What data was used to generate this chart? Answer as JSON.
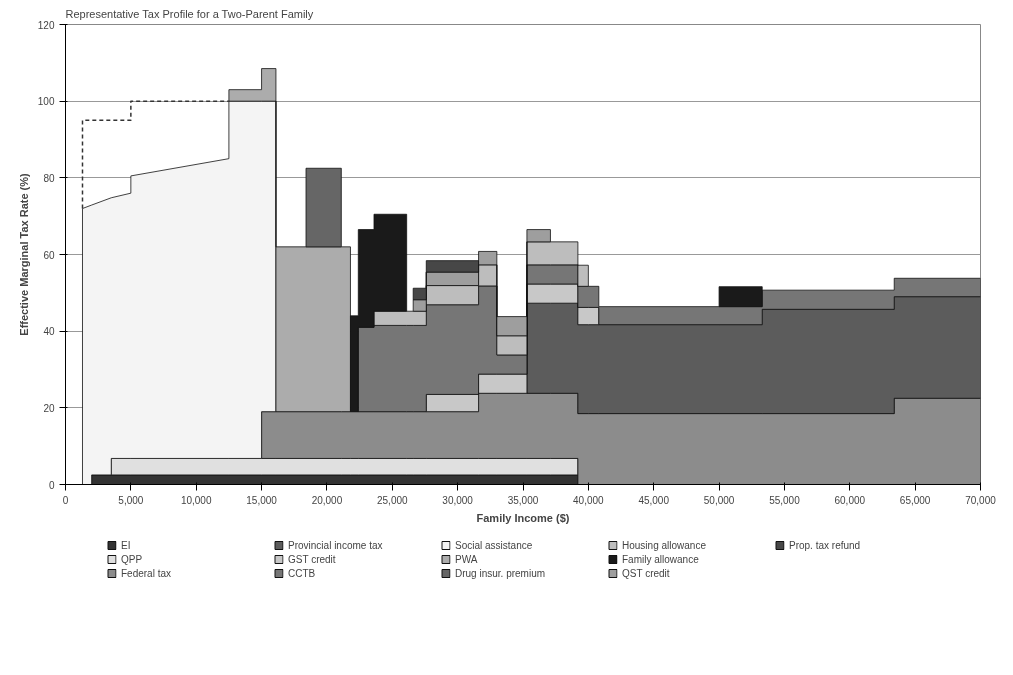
{
  "chart_data": {
    "type": "area",
    "stacked": true,
    "title": "Representative Tax Profile for a Two-Parent Family",
    "xlabel": "Family Income ($)",
    "ylabel": "Effective Marginal Tax Rate (%)",
    "x": [
      1300,
      2000,
      2000,
      3500,
      3500,
      5000,
      5000,
      12500,
      12500,
      15000,
      15000,
      16100,
      16100,
      18400,
      18400,
      21100,
      21100,
      21800,
      21800,
      22400,
      22400,
      23600,
      23600,
      26100,
      26100,
      26600,
      26600,
      27600,
      27600,
      31600,
      31600,
      33000,
      33000,
      35300,
      35300,
      37100,
      37100,
      39200,
      39200,
      40000,
      40000,
      40800,
      40800,
      50000,
      50000,
      53300,
      53300,
      63400,
      63400,
      70000
    ],
    "xlim": [
      0,
      70000
    ],
    "xticks": [
      0,
      {
        "value": 5000,
        "label": "5,000"
      },
      {
        "value": 10000,
        "label": "10,000"
      },
      {
        "value": 15000,
        "label": "15,000"
      },
      {
        "value": 20000,
        "label": "20,000"
      },
      {
        "value": 25000,
        "label": "25,000"
      },
      {
        "value": 30000,
        "label": "30,000"
      },
      {
        "value": 35000,
        "label": "35,000"
      },
      {
        "value": 40000,
        "label": "40,000"
      },
      {
        "value": 45000,
        "label": "45,000"
      },
      {
        "value": 50000,
        "label": "50,000"
      },
      {
        "value": 55000,
        "label": "55,000"
      },
      {
        "value": 60000,
        "label": "60,000"
      },
      {
        "value": 65000,
        "label": "65,000"
      },
      {
        "value": 70000,
        "label": "70,000"
      }
    ],
    "ylim": [
      0,
      120
    ],
    "yticks": [
      0,
      20,
      40,
      60,
      80,
      100,
      120
    ],
    "grid": "y",
    "legend": "bottom",
    "series": [
      {
        "name": "EI",
        "color": "#333333",
        "values": [
          null,
          null,
          2.5,
          2.5,
          2.5,
          2.5,
          2.5,
          2.5,
          2.5,
          2.5,
          2.5,
          2.5,
          2.5,
          2.5,
          2.5,
          2.5,
          2.5,
          2.5,
          2.5,
          2.5,
          2.5,
          2.5,
          2.5,
          2.5,
          2.5,
          2.5,
          2.5,
          2.5,
          2.5,
          2.5,
          2.5,
          2.5,
          2.5,
          2.5,
          2.5,
          2.5,
          2.5,
          2.5,
          null,
          null,
          null,
          null,
          null,
          null,
          null,
          null,
          null,
          null,
          null,
          null
        ]
      },
      {
        "name": "QPP",
        "color": "#e0e0e0",
        "values": [
          null,
          null,
          null,
          null,
          4.3,
          4.3,
          4.3,
          4.3,
          4.3,
          4.3,
          4.3,
          4.3,
          4.3,
          4.3,
          4.3,
          4.3,
          4.3,
          4.3,
          4.3,
          4.3,
          4.3,
          4.3,
          4.3,
          4.3,
          4.3,
          4.3,
          4.3,
          4.3,
          4.3,
          4.3,
          4.3,
          4.3,
          4.3,
          4.3,
          4.3,
          4.3,
          4.3,
          4.3,
          null,
          null,
          null,
          null,
          null,
          null,
          null,
          null,
          null,
          null,
          null,
          null
        ]
      },
      {
        "name": "Federal tax",
        "color": "#8c8c8c",
        "values": [
          null,
          null,
          null,
          null,
          null,
          null,
          null,
          null,
          null,
          null,
          12.2,
          12.2,
          12.2,
          12.2,
          12.2,
          12.2,
          12.2,
          12.2,
          12.2,
          12.2,
          12.2,
          12.2,
          12.2,
          12.2,
          12.2,
          12.2,
          12.2,
          12.2,
          12.2,
          12.2,
          17,
          17,
          17,
          17,
          17,
          17,
          17,
          17,
          18.5,
          18.5,
          18.5,
          18.5,
          18.5,
          18.5,
          18.5,
          18.5,
          18.5,
          18.5,
          22.5,
          22.5
        ]
      },
      {
        "name": "Provincial income tax",
        "color": "#5c5c5c",
        "values": [
          null,
          null,
          null,
          null,
          null,
          null,
          null,
          null,
          null,
          null,
          null,
          null,
          null,
          null,
          null,
          null,
          null,
          null,
          null,
          null,
          null,
          null,
          null,
          null,
          null,
          null,
          null,
          null,
          null,
          null,
          null,
          null,
          null,
          null,
          23.5,
          23.5,
          23.5,
          23.5,
          23.2,
          23.2,
          23.2,
          23.2,
          23.2,
          23.2,
          23.2,
          23.2,
          27.2,
          27.2,
          26.5,
          26.5
        ]
      },
      {
        "name": "GST credit",
        "color": "#c8c8c8",
        "values": [
          null,
          null,
          null,
          null,
          null,
          null,
          null,
          null,
          null,
          null,
          null,
          null,
          null,
          null,
          null,
          null,
          null,
          null,
          null,
          null,
          null,
          null,
          null,
          null,
          null,
          null,
          null,
          null,
          4.5,
          4.5,
          5,
          5,
          5,
          5,
          5,
          5,
          5,
          5,
          4.5,
          4.5,
          4.5,
          4.5,
          null,
          null,
          null,
          null,
          null,
          null,
          null,
          null
        ]
      },
      {
        "name": "CCTB",
        "color": "#767676",
        "values": [
          null,
          null,
          null,
          null,
          null,
          null,
          null,
          null,
          null,
          null,
          null,
          null,
          null,
          null,
          null,
          null,
          null,
          null,
          null,
          null,
          22,
          22,
          22.5,
          22.5,
          22.5,
          22.5,
          22.5,
          22.5,
          23.4,
          23.4,
          23,
          23,
          5,
          5,
          5,
          5,
          5,
          5,
          5.5,
          5.5,
          5.5,
          5.5,
          4.7,
          4.7,
          4.7,
          4.7,
          5,
          5,
          4.8,
          4.8
        ]
      },
      {
        "name": "Social assistance",
        "color": "#f4f4f4",
        "values": [
          72,
          72.9,
          70.4,
          72.3,
          68,
          69.2,
          73.7,
          78.2,
          93.2,
          93.2,
          81,
          81,
          null,
          null,
          null,
          null,
          null,
          null,
          null,
          null,
          null,
          null,
          null,
          null,
          null,
          null,
          null,
          null,
          null,
          null,
          null,
          null,
          null,
          null,
          null,
          null,
          null,
          null,
          null,
          null,
          null,
          null,
          null,
          null,
          null,
          null,
          null,
          null,
          null,
          null
        ]
      },
      {
        "name": "PWA",
        "color": "#acacac",
        "values": [
          null,
          null,
          null,
          null,
          null,
          null,
          null,
          null,
          3,
          3,
          8.5,
          8.5,
          43,
          43,
          43,
          43,
          43,
          43,
          null,
          null,
          null,
          null,
          null,
          null,
          null,
          null,
          null,
          null,
          null,
          null,
          null,
          null,
          null,
          null,
          null,
          null,
          null,
          null,
          null,
          null,
          null,
          null,
          null,
          null,
          null,
          null,
          null,
          null,
          null,
          null
        ]
      },
      {
        "name": "Drug insur. premium",
        "color": "#666666",
        "values": [
          null,
          null,
          null,
          null,
          null,
          null,
          null,
          null,
          null,
          null,
          null,
          null,
          null,
          null,
          20.5,
          20.5,
          null,
          null,
          null,
          null,
          null,
          null,
          null,
          null,
          null,
          null,
          null,
          null,
          null,
          null,
          null,
          null,
          null,
          null,
          null,
          null,
          null,
          null,
          null,
          null,
          null,
          null,
          null,
          null,
          null,
          null,
          null,
          null,
          null,
          null
        ]
      },
      {
        "name": "Housing allowance",
        "color": "#bdbdbd",
        "values": [
          null,
          null,
          null,
          null,
          null,
          null,
          null,
          null,
          null,
          null,
          null,
          null,
          null,
          null,
          null,
          null,
          null,
          null,
          null,
          null,
          null,
          null,
          3.7,
          3.7,
          3.7,
          3.7,
          3.7,
          3.7,
          5,
          5,
          5.5,
          5.5,
          5,
          5,
          6,
          6,
          6,
          6,
          5.5,
          5.5,
          null,
          null,
          null,
          null,
          null,
          null,
          null,
          null,
          null,
          null
        ]
      },
      {
        "name": "Family allowance",
        "color": "#1a1a1a",
        "values": [
          null,
          null,
          null,
          null,
          null,
          null,
          null,
          null,
          null,
          null,
          null,
          null,
          null,
          null,
          null,
          null,
          null,
          null,
          25,
          25,
          25.5,
          25.5,
          25.3,
          25.3,
          null,
          null,
          null,
          null,
          null,
          null,
          null,
          null,
          null,
          null,
          null,
          null,
          null,
          null,
          null,
          null,
          null,
          null,
          null,
          null,
          5.2,
          5.2,
          null,
          null,
          null,
          null
        ]
      },
      {
        "name": "QST credit",
        "color": "#9e9e9e",
        "values": [
          null,
          null,
          null,
          null,
          null,
          null,
          null,
          null,
          null,
          null,
          null,
          null,
          null,
          null,
          null,
          null,
          null,
          null,
          null,
          null,
          null,
          null,
          null,
          null,
          null,
          null,
          3,
          3,
          3.5,
          3.5,
          3.5,
          3.5,
          5,
          5,
          3.2,
          3.2,
          null,
          null,
          null,
          null,
          null,
          null,
          null,
          null,
          null,
          null,
          null,
          null,
          null,
          null
        ]
      },
      {
        "name": "Prop. tax refund",
        "color": "#474747",
        "values": [
          null,
          null,
          null,
          null,
          null,
          null,
          null,
          null,
          null,
          null,
          null,
          null,
          null,
          null,
          null,
          null,
          null,
          null,
          null,
          null,
          null,
          null,
          null,
          null,
          null,
          null,
          3,
          3,
          3,
          3,
          null,
          null,
          null,
          null,
          null,
          null,
          null,
          null,
          null,
          null,
          null,
          null,
          null,
          null,
          null,
          null,
          null,
          null,
          null,
          null
        ]
      },
      {
        "type": "line",
        "line_style": "dashed",
        "color": "#333333",
        "x": [
          1300,
          1300,
          5000,
          5000,
          12500
        ],
        "values": [
          72,
          95,
          95,
          100,
          100
        ]
      }
    ]
  }
}
